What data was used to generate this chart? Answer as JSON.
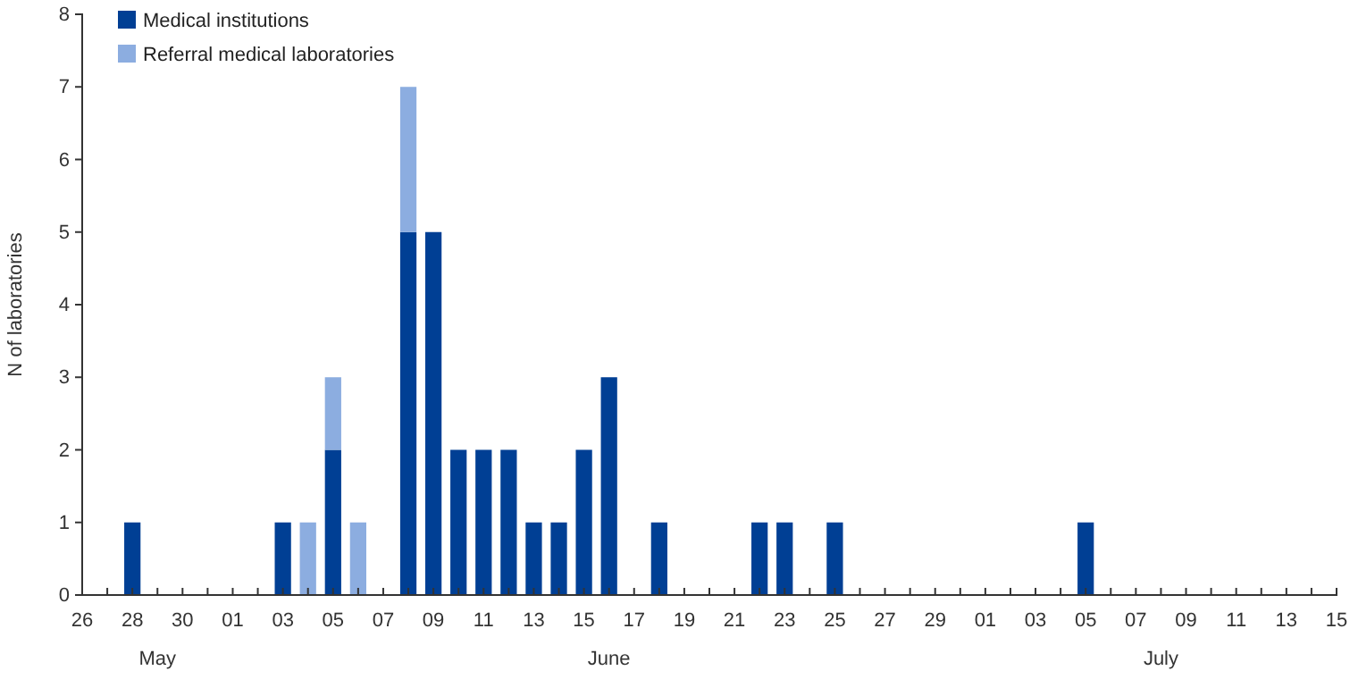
{
  "chart_data": {
    "type": "bar",
    "stacked": true,
    "ylabel": "N of laboratories",
    "x": [
      "--05-28",
      "--06-03",
      "--06-04",
      "--06-05",
      "--06-06",
      "--06-08",
      "--06-09",
      "--06-10",
      "--06-11",
      "--06-12",
      "--06-13",
      "--06-14",
      "--06-15",
      "--06-16",
      "--06-18",
      "--06-22",
      "--06-23",
      "--06-25",
      "--07-05"
    ],
    "series": [
      {
        "name": "Medical institutions",
        "color": "#003f94",
        "values": [
          1,
          1,
          null,
          2,
          null,
          5,
          5,
          2,
          2,
          2,
          1,
          1,
          2,
          3,
          1,
          1,
          1,
          1,
          1
        ]
      },
      {
        "name": "Referral medical laboratories",
        "color": "#8cade0",
        "values": [
          null,
          null,
          1,
          1,
          1,
          2,
          null,
          null,
          null,
          null,
          null,
          null,
          null,
          null,
          null,
          null,
          null,
          null,
          null
        ]
      }
    ],
    "ylim": [
      0,
      8
    ],
    "yticks": [
      0,
      1,
      2,
      3,
      4,
      5,
      6,
      7,
      8
    ],
    "xlim": [
      "--05-26",
      "--07-15"
    ],
    "xticks": [
      {
        "value": "--05-26",
        "label": "26"
      },
      {
        "value": "--05-27",
        "label": null
      },
      {
        "value": "--05-28",
        "label": "28"
      },
      {
        "value": "--05-29",
        "label": null
      },
      {
        "value": "--05-30",
        "label": "30"
      },
      {
        "value": "--05-31",
        "label": null
      },
      {
        "value": "--06-01",
        "label": "01"
      },
      {
        "value": "--06-02",
        "label": null
      },
      {
        "value": "--06-03",
        "label": "03"
      },
      {
        "value": "--06-04",
        "label": null
      },
      {
        "value": "--06-05",
        "label": "05"
      },
      {
        "value": "--06-06",
        "label": null
      },
      {
        "value": "--06-07",
        "label": "07"
      },
      {
        "value": "--06-08",
        "label": null
      },
      {
        "value": "--06-09",
        "label": "09"
      },
      {
        "value": "--06-10",
        "label": null
      },
      {
        "value": "--06-11",
        "label": "11"
      },
      {
        "value": "--06-12",
        "label": null
      },
      {
        "value": "--06-13",
        "label": "13"
      },
      {
        "value": "--06-14",
        "label": null
      },
      {
        "value": "--06-15",
        "label": "15"
      },
      {
        "value": "--06-16",
        "label": null
      },
      {
        "value": "--06-17",
        "label": "17"
      },
      {
        "value": "--06-18",
        "label": null
      },
      {
        "value": "--06-19",
        "label": "19"
      },
      {
        "value": "--06-20",
        "label": null
      },
      {
        "value": "--06-21",
        "label": "21"
      },
      {
        "value": "--06-22",
        "label": null
      },
      {
        "value": "--06-23",
        "label": "23"
      },
      {
        "value": "--06-24",
        "label": null
      },
      {
        "value": "--06-25",
        "label": "25"
      },
      {
        "value": "--06-26",
        "label": null
      },
      {
        "value": "--06-27",
        "label": "27"
      },
      {
        "value": "--06-28",
        "label": null
      },
      {
        "value": "--06-29",
        "label": "29"
      },
      {
        "value": "--06-30",
        "label": null
      },
      {
        "value": "--07-01",
        "label": "01"
      },
      {
        "value": "--07-02",
        "label": null
      },
      {
        "value": "--07-03",
        "label": "03"
      },
      {
        "value": "--07-04",
        "label": null
      },
      {
        "value": "--07-05",
        "label": "05"
      },
      {
        "value": "--07-06",
        "label": null
      },
      {
        "value": "--07-07",
        "label": "07"
      },
      {
        "value": "--07-08",
        "label": null
      },
      {
        "value": "--07-09",
        "label": "09"
      },
      {
        "value": "--07-10",
        "label": null
      },
      {
        "value": "--07-11",
        "label": "11"
      },
      {
        "value": "--07-12",
        "label": null
      },
      {
        "value": "--07-13",
        "label": "13"
      },
      {
        "value": "--07-14",
        "label": null
      },
      {
        "value": "--07-15",
        "label": "15"
      }
    ],
    "annotations": [
      "May",
      "June",
      "July"
    ],
    "legend": "top left",
    "grid": false
  }
}
